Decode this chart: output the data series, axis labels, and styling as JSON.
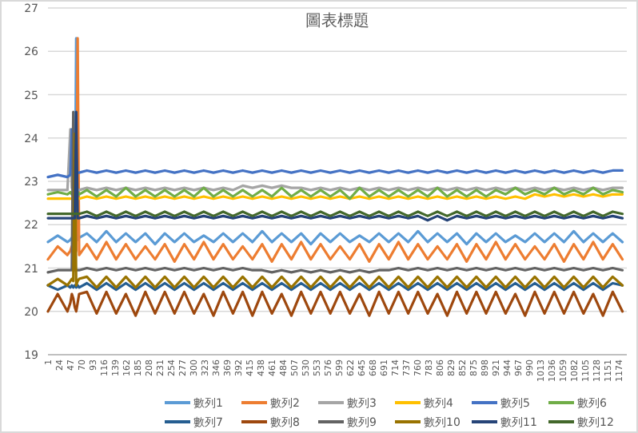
{
  "chart_data": {
    "type": "line",
    "title": "圖表標題",
    "grid": "y",
    "legend": "bottom",
    "x": [
      1,
      21,
      41,
      47,
      50,
      53,
      56,
      59,
      62,
      65,
      81,
      101,
      121,
      141,
      161,
      181,
      201,
      221,
      241,
      261,
      281,
      301,
      321,
      341,
      361,
      381,
      401,
      421,
      441,
      461,
      481,
      501,
      521,
      541,
      561,
      581,
      601,
      621,
      641,
      661,
      681,
      701,
      721,
      741,
      761,
      781,
      801,
      821,
      841,
      861,
      881,
      901,
      921,
      941,
      961,
      981,
      1001,
      1021,
      1041,
      1061,
      1081,
      1101,
      1121,
      1141,
      1161,
      1181
    ],
    "xlim": [
      1,
      1190
    ],
    "xticks": [
      1,
      24,
      47,
      70,
      93,
      116,
      139,
      162,
      185,
      208,
      231,
      254,
      277,
      300,
      323,
      346,
      369,
      392,
      415,
      438,
      461,
      484,
      507,
      530,
      553,
      576,
      599,
      622,
      645,
      668,
      691,
      714,
      737,
      760,
      783,
      806,
      829,
      852,
      875,
      898,
      921,
      944,
      967,
      990,
      1013,
      1036,
      1059,
      1082,
      1105,
      1128,
      1151,
      1174
    ],
    "ylim": [
      19,
      27
    ],
    "yticks": [
      19,
      20,
      21,
      22,
      23,
      24,
      25,
      26,
      27
    ],
    "series": [
      {
        "name": "數列1",
        "color": "#5b9bd5",
        "values": [
          21.6,
          21.75,
          21.6,
          21.65,
          21.7,
          21.65,
          21.6,
          26.3,
          21.65,
          21.7,
          21.8,
          21.6,
          21.85,
          21.6,
          21.8,
          21.6,
          21.8,
          21.55,
          21.8,
          21.6,
          21.8,
          21.6,
          21.75,
          21.6,
          21.8,
          21.6,
          21.8,
          21.6,
          21.85,
          21.6,
          21.8,
          21.6,
          21.8,
          21.55,
          21.8,
          21.6,
          21.8,
          21.6,
          21.75,
          21.6,
          21.8,
          21.6,
          21.8,
          21.6,
          21.85,
          21.6,
          21.8,
          21.6,
          21.8,
          21.55,
          21.8,
          21.6,
          21.8,
          21.6,
          21.75,
          21.6,
          21.8,
          21.6,
          21.8,
          21.6,
          21.85,
          21.6,
          21.8,
          21.6,
          21.8,
          21.6
        ]
      },
      {
        "name": "數列2",
        "color": "#ed7d31",
        "values": [
          21.2,
          21.5,
          21.3,
          21.4,
          21.5,
          21.4,
          21.3,
          21.4,
          26.3,
          21.3,
          21.55,
          21.2,
          21.6,
          21.2,
          21.55,
          21.2,
          21.5,
          21.2,
          21.55,
          21.15,
          21.55,
          21.2,
          21.6,
          21.2,
          21.55,
          21.2,
          21.5,
          21.2,
          21.55,
          21.15,
          21.55,
          21.2,
          21.6,
          21.2,
          21.55,
          21.2,
          21.5,
          21.2,
          21.55,
          21.15,
          21.55,
          21.2,
          21.6,
          21.2,
          21.55,
          21.2,
          21.5,
          21.2,
          21.55,
          21.15,
          21.55,
          21.2,
          21.6,
          21.2,
          21.55,
          21.2,
          21.5,
          21.2,
          21.55,
          21.15,
          21.55,
          21.2,
          21.6,
          21.2,
          21.55,
          21.2
        ]
      },
      {
        "name": "數列3",
        "color": "#a5a5a5",
        "values": [
          22.8,
          22.8,
          22.8,
          24.2,
          22.85,
          22.8,
          22.8,
          22.8,
          22.8,
          22.8,
          22.85,
          22.8,
          22.85,
          22.8,
          22.85,
          22.8,
          22.85,
          22.8,
          22.85,
          22.8,
          22.85,
          22.8,
          22.85,
          22.8,
          22.85,
          22.8,
          22.9,
          22.85,
          22.9,
          22.85,
          22.9,
          22.85,
          22.85,
          22.8,
          22.85,
          22.8,
          22.85,
          22.8,
          22.85,
          22.8,
          22.85,
          22.8,
          22.85,
          22.8,
          22.85,
          22.8,
          22.85,
          22.8,
          22.85,
          22.8,
          22.85,
          22.8,
          22.85,
          22.8,
          22.85,
          22.8,
          22.85,
          22.8,
          22.85,
          22.8,
          22.85,
          22.8,
          22.85,
          22.8,
          22.85,
          22.85
        ]
      },
      {
        "name": "數列4",
        "color": "#ffc000",
        "values": [
          22.6,
          22.6,
          22.6,
          22.6,
          22.6,
          22.6,
          22.6,
          22.6,
          22.6,
          22.6,
          22.65,
          22.6,
          22.65,
          22.6,
          22.65,
          22.6,
          22.65,
          22.6,
          22.65,
          22.6,
          22.65,
          22.6,
          22.65,
          22.6,
          22.65,
          22.6,
          22.65,
          22.6,
          22.65,
          22.6,
          22.65,
          22.6,
          22.65,
          22.6,
          22.65,
          22.6,
          22.65,
          22.6,
          22.65,
          22.6,
          22.65,
          22.6,
          22.65,
          22.6,
          22.65,
          22.6,
          22.65,
          22.6,
          22.65,
          22.6,
          22.65,
          22.6,
          22.65,
          22.6,
          22.65,
          22.6,
          22.7,
          22.65,
          22.7,
          22.65,
          22.7,
          22.65,
          22.7,
          22.65,
          22.7,
          22.7
        ]
      },
      {
        "name": "數列5",
        "color": "#4472c4",
        "values": [
          23.1,
          23.15,
          23.1,
          23.15,
          24.2,
          23.2,
          23.2,
          23.2,
          23.2,
          23.2,
          23.25,
          23.2,
          23.25,
          23.2,
          23.25,
          23.2,
          23.25,
          23.2,
          23.25,
          23.2,
          23.25,
          23.2,
          23.25,
          23.2,
          23.25,
          23.2,
          23.25,
          23.2,
          23.25,
          23.2,
          23.25,
          23.2,
          23.25,
          23.2,
          23.25,
          23.2,
          23.25,
          23.2,
          23.25,
          23.2,
          23.25,
          23.2,
          23.25,
          23.2,
          23.25,
          23.2,
          23.25,
          23.2,
          23.25,
          23.2,
          23.25,
          23.2,
          23.25,
          23.2,
          23.25,
          23.2,
          23.25,
          23.2,
          23.25,
          23.2,
          23.25,
          23.2,
          23.25,
          23.2,
          23.25,
          23.25
        ]
      },
      {
        "name": "數列6",
        "color": "#70ad47",
        "values": [
          22.7,
          22.75,
          22.7,
          22.75,
          22.7,
          22.75,
          21.1,
          22.7,
          22.75,
          22.7,
          22.8,
          22.65,
          22.8,
          22.65,
          22.85,
          22.65,
          22.8,
          22.65,
          22.8,
          22.65,
          22.8,
          22.65,
          22.85,
          22.65,
          22.8,
          22.65,
          22.8,
          22.65,
          22.8,
          22.65,
          22.85,
          22.65,
          22.8,
          22.65,
          22.8,
          22.65,
          22.8,
          22.6,
          22.85,
          22.65,
          22.8,
          22.65,
          22.8,
          22.65,
          22.8,
          22.65,
          22.85,
          22.65,
          22.8,
          22.65,
          22.8,
          22.65,
          22.8,
          22.7,
          22.85,
          22.7,
          22.8,
          22.7,
          22.85,
          22.7,
          22.8,
          22.7,
          22.85,
          22.7,
          22.8,
          22.75
        ]
      },
      {
        "name": "數列7",
        "color": "#255e91",
        "values": [
          20.6,
          20.5,
          20.6,
          20.55,
          20.6,
          20.55,
          20.6,
          20.55,
          20.6,
          20.55,
          20.65,
          20.5,
          20.65,
          20.5,
          20.65,
          20.5,
          20.65,
          20.5,
          20.65,
          20.5,
          20.65,
          20.5,
          20.65,
          20.5,
          20.65,
          20.5,
          20.65,
          20.5,
          20.65,
          20.5,
          20.65,
          20.5,
          20.65,
          20.5,
          20.65,
          20.5,
          20.65,
          20.5,
          20.65,
          20.5,
          20.65,
          20.5,
          20.65,
          20.5,
          20.65,
          20.5,
          20.65,
          20.5,
          20.65,
          20.5,
          20.65,
          20.5,
          20.65,
          20.5,
          20.65,
          20.5,
          20.65,
          20.5,
          20.65,
          20.5,
          20.65,
          20.5,
          20.65,
          20.5,
          20.65,
          20.6
        ]
      },
      {
        "name": "數列8",
        "color": "#9e480e",
        "values": [
          20.0,
          20.4,
          20.0,
          20.2,
          20.4,
          20.3,
          20.1,
          20.0,
          20.2,
          20.4,
          20.45,
          19.95,
          20.45,
          19.95,
          20.4,
          19.9,
          20.45,
          19.95,
          20.45,
          19.95,
          20.45,
          19.95,
          20.4,
          19.9,
          20.45,
          19.95,
          20.45,
          19.9,
          20.45,
          19.95,
          20.4,
          19.9,
          20.45,
          19.95,
          20.45,
          19.95,
          20.45,
          19.95,
          20.4,
          19.9,
          20.45,
          19.95,
          20.45,
          19.95,
          20.45,
          19.95,
          20.4,
          19.9,
          20.45,
          19.95,
          20.45,
          19.95,
          20.45,
          19.95,
          20.4,
          19.9,
          20.45,
          19.95,
          20.45,
          19.95,
          20.45,
          19.95,
          20.4,
          19.9,
          20.45,
          20.0
        ]
      },
      {
        "name": "數列9",
        "color": "#636363",
        "values": [
          20.9,
          20.95,
          20.95,
          20.95,
          20.95,
          24.6,
          20.95,
          20.95,
          20.95,
          20.95,
          21.0,
          20.95,
          21.0,
          20.95,
          21.0,
          20.95,
          21.0,
          20.95,
          21.0,
          20.95,
          21.0,
          20.95,
          21.0,
          20.95,
          21.0,
          20.95,
          21.0,
          20.95,
          20.95,
          20.9,
          20.95,
          20.9,
          20.95,
          20.9,
          20.95,
          20.9,
          20.95,
          20.9,
          20.95,
          20.9,
          20.95,
          20.95,
          21.0,
          20.95,
          21.0,
          20.95,
          21.0,
          20.95,
          21.0,
          20.95,
          21.0,
          20.95,
          21.0,
          20.95,
          21.0,
          20.95,
          21.0,
          20.95,
          21.0,
          20.95,
          21.0,
          20.95,
          21.0,
          20.95,
          21.0,
          20.95
        ]
      },
      {
        "name": "數列10",
        "color": "#997300",
        "values": [
          20.6,
          20.75,
          20.6,
          20.7,
          20.75,
          20.7,
          24.1,
          20.6,
          20.7,
          20.75,
          20.8,
          20.55,
          20.8,
          20.55,
          20.8,
          20.55,
          20.8,
          20.55,
          20.8,
          20.55,
          20.8,
          20.55,
          20.8,
          20.55,
          20.8,
          20.55,
          20.8,
          20.55,
          20.8,
          20.55,
          20.8,
          20.55,
          20.8,
          20.55,
          20.8,
          20.55,
          20.8,
          20.55,
          20.8,
          20.55,
          20.8,
          20.55,
          20.8,
          20.55,
          20.8,
          20.55,
          20.8,
          20.55,
          20.8,
          20.55,
          20.8,
          20.55,
          20.8,
          20.55,
          20.8,
          20.55,
          20.8,
          20.55,
          20.8,
          20.55,
          20.8,
          20.55,
          20.8,
          20.55,
          20.8,
          20.6
        ]
      },
      {
        "name": "數列11",
        "color": "#264478",
        "values": [
          22.15,
          22.15,
          22.15,
          22.15,
          22.15,
          22.15,
          22.15,
          24.6,
          22.15,
          22.15,
          22.2,
          22.15,
          22.2,
          22.15,
          22.2,
          22.15,
          22.2,
          22.15,
          22.2,
          22.15,
          22.2,
          22.15,
          22.2,
          22.15,
          22.2,
          22.15,
          22.2,
          22.15,
          22.2,
          22.15,
          22.2,
          22.15,
          22.2,
          22.15,
          22.2,
          22.15,
          22.2,
          22.15,
          22.2,
          22.15,
          22.2,
          22.15,
          22.2,
          22.15,
          22.2,
          22.1,
          22.2,
          22.1,
          22.2,
          22.15,
          22.2,
          22.15,
          22.2,
          22.15,
          22.2,
          22.15,
          22.2,
          22.15,
          22.2,
          22.15,
          22.2,
          22.15,
          22.2,
          22.15,
          22.2,
          22.15
        ]
      },
      {
        "name": "數列12",
        "color": "#43682b",
        "values": [
          22.25,
          22.25,
          22.25,
          22.25,
          22.25,
          22.25,
          22.25,
          22.25,
          22.25,
          22.25,
          22.3,
          22.2,
          22.3,
          22.2,
          22.3,
          22.2,
          22.3,
          22.2,
          22.3,
          22.2,
          22.3,
          22.2,
          22.3,
          22.2,
          22.3,
          22.2,
          22.3,
          22.2,
          22.3,
          22.2,
          22.3,
          22.2,
          22.3,
          22.2,
          22.3,
          22.2,
          22.3,
          22.2,
          22.3,
          22.2,
          22.3,
          22.2,
          22.3,
          22.2,
          22.3,
          22.2,
          22.3,
          22.2,
          22.3,
          22.2,
          22.3,
          22.2,
          22.3,
          22.2,
          22.3,
          22.2,
          22.3,
          22.2,
          22.3,
          22.2,
          22.3,
          22.2,
          22.3,
          22.2,
          22.3,
          22.25
        ]
      }
    ]
  }
}
